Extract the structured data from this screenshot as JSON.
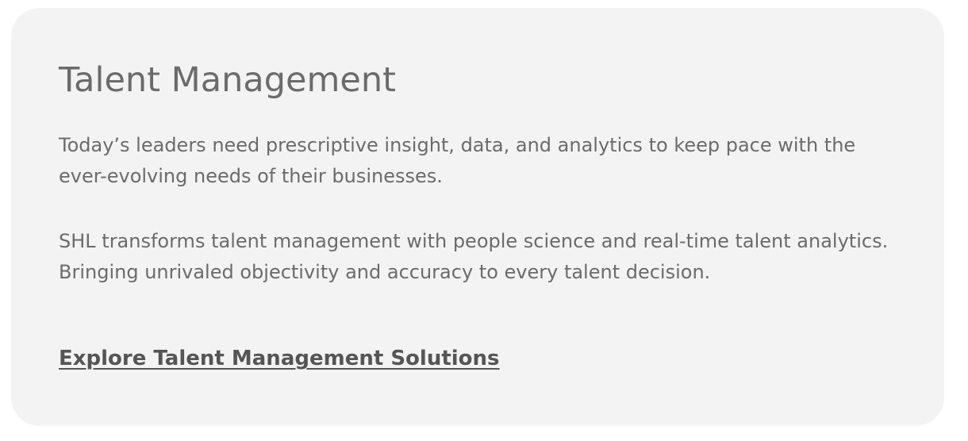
{
  "card": {
    "title": "Talent Management",
    "paragraphs": [
      "Today’s leaders need prescriptive insight, data, and analytics to keep pace with the ever-evolving needs of their businesses.",
      "SHL transforms talent management with people science and real-time talent analytics. Bringing unrivaled objectivity and accuracy to every talent decision."
    ],
    "cta_label": "Explore Talent Management Solutions"
  },
  "colors": {
    "card_background": "#f3f3f3",
    "text": "#6b6b6b",
    "link": "#555555"
  }
}
